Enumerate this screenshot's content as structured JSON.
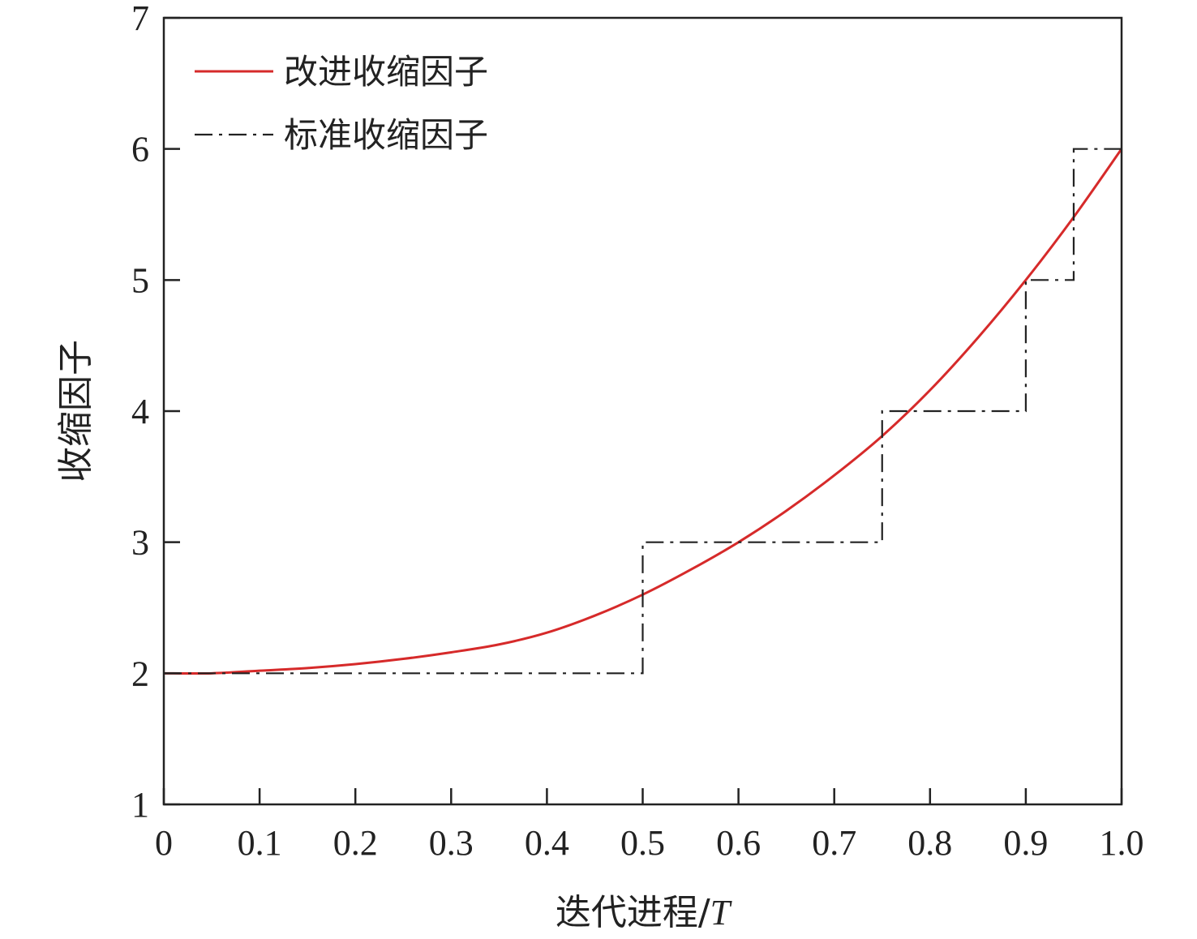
{
  "chart_data": {
    "type": "line",
    "title": "",
    "xlabel_main": "迭代进程/",
    "xlabel_italic": "T",
    "ylabel": "收缩因子",
    "xlim": [
      0,
      1.0
    ],
    "ylim": [
      1,
      7
    ],
    "xticks": [
      0,
      0.1,
      0.2,
      0.3,
      0.4,
      0.5,
      0.6,
      0.7,
      0.8,
      0.9,
      1.0
    ],
    "xtick_labels": [
      "0",
      "0.1",
      "0.2",
      "0.3",
      "0.4",
      "0.5",
      "0.6",
      "0.7",
      "0.8",
      "0.9",
      "1.0"
    ],
    "yticks": [
      1,
      2,
      3,
      4,
      5,
      6,
      7
    ],
    "ytick_labels": [
      "1",
      "2",
      "3",
      "4",
      "5",
      "6",
      "7"
    ],
    "grid": false,
    "legend_position": "top-left",
    "series": [
      {
        "name": "改进收缩因子",
        "style": "solid",
        "color": "#d62a2a",
        "x": [
          0,
          0.05,
          0.1,
          0.15,
          0.2,
          0.25,
          0.3,
          0.35,
          0.4,
          0.45,
          0.5,
          0.55,
          0.6,
          0.65,
          0.7,
          0.75,
          0.8,
          0.85,
          0.9,
          0.95,
          1.0
        ],
        "y": [
          2.0,
          2.0,
          2.02,
          2.04,
          2.07,
          2.11,
          2.16,
          2.22,
          2.31,
          2.44,
          2.6,
          2.79,
          3.0,
          3.24,
          3.51,
          3.81,
          4.16,
          4.56,
          5.0,
          5.48,
          6.0
        ]
      },
      {
        "name": "标准收缩因子",
        "style": "dashdot",
        "color": "#222222",
        "x": [
          0,
          0.5,
          0.5,
          0.75,
          0.75,
          0.9,
          0.9,
          0.95,
          0.95,
          1.0
        ],
        "y": [
          2,
          2,
          3,
          3,
          4,
          4,
          5,
          5,
          6,
          6
        ]
      }
    ]
  }
}
